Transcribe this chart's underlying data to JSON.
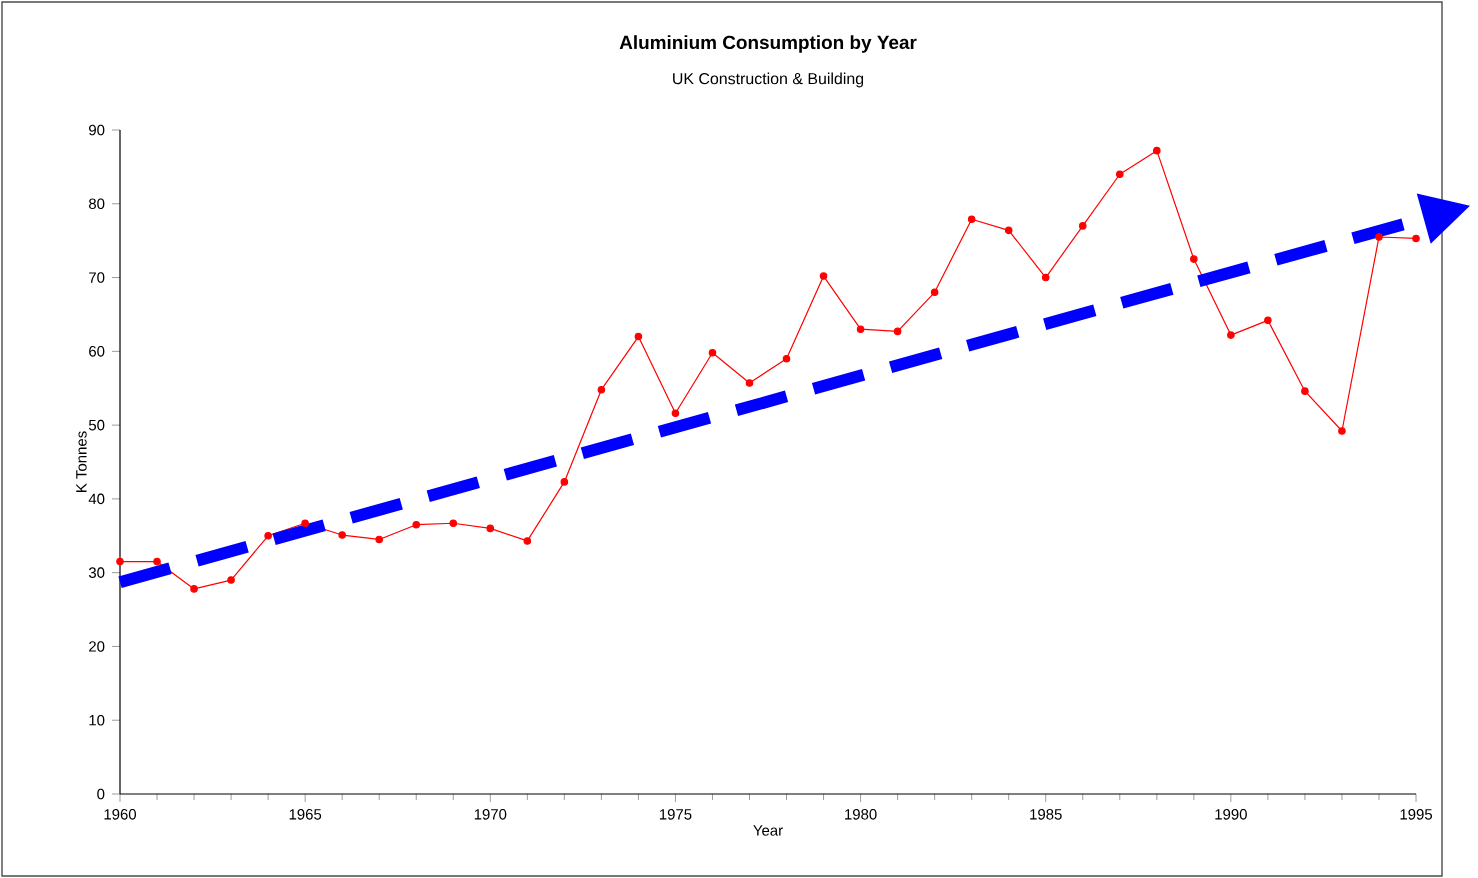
{
  "chart_data": {
    "type": "line",
    "title": "Aluminium Consumption by Year",
    "subtitle": "UK Construction & Building",
    "xlabel": "Year",
    "ylabel": "K Tonnes",
    "x": [
      1960,
      1961,
      1962,
      1963,
      1964,
      1965,
      1966,
      1967,
      1968,
      1969,
      1970,
      1971,
      1972,
      1973,
      1974,
      1975,
      1976,
      1977,
      1978,
      1979,
      1980,
      1981,
      1982,
      1983,
      1984,
      1985,
      1986,
      1987,
      1988,
      1989,
      1990,
      1991,
      1992,
      1993,
      1994,
      1995
    ],
    "series": [
      {
        "color": "#ff0000",
        "marker": "circle",
        "line_style": "solid",
        "values": [
          31.5,
          31.5,
          27.8,
          29,
          35,
          36.7,
          35.1,
          34.5,
          36.5,
          36.7,
          36,
          34.3,
          42.3,
          54.8,
          62,
          51.6,
          59.8,
          55.7,
          59,
          70.2,
          63,
          62.7,
          68,
          77.9,
          76.4,
          70,
          77,
          84,
          87.2,
          72.5,
          62.2,
          64.2,
          54.6,
          49.2,
          75.5,
          75.3
        ]
      },
      {
        "type": "line",
        "color": "#0000ff",
        "marker": "none",
        "line_style": "dashed",
        "x": [
          1960,
          1995
        ],
        "values": [
          28.7,
          77.7
        ]
      }
    ],
    "xlim": [
      1960,
      1995
    ],
    "ylim": [
      0,
      90
    ],
    "xticks": [
      1960,
      1965,
      1970,
      1975,
      1980,
      1985,
      1990,
      1995
    ],
    "yticks": [
      0,
      10,
      20,
      30,
      40,
      50,
      60,
      70,
      80,
      90
    ],
    "grid": false
  }
}
